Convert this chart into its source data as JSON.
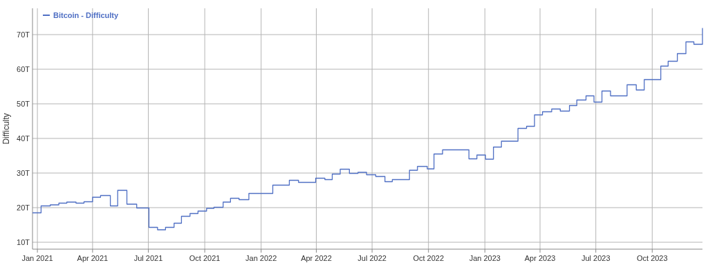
{
  "chart_data": {
    "type": "step",
    "ylabel": "Difficulty",
    "legend": "top left",
    "grid": true,
    "marker": "none",
    "line_style": "solid",
    "xlim": [
      "2020-12-24",
      "2023-12-22"
    ],
    "ylim": [
      8,
      77.6
    ],
    "xticks": [
      {
        "value": "2021-01-01",
        "label": "Jan 2021"
      },
      {
        "value": "2021-04-01",
        "label": "Apr 2021"
      },
      {
        "value": "2021-07-01",
        "label": "Jul 2021"
      },
      {
        "value": "2021-10-01",
        "label": "Oct 2021"
      },
      {
        "value": "2022-01-01",
        "label": "Jan 2022"
      },
      {
        "value": "2022-04-01",
        "label": "Apr 2022"
      },
      {
        "value": "2022-07-01",
        "label": "Jul 2022"
      },
      {
        "value": "2022-10-01",
        "label": "Oct 2022"
      },
      {
        "value": "2023-01-01",
        "label": "Jan 2023"
      },
      {
        "value": "2023-04-01",
        "label": "Apr 2023"
      },
      {
        "value": "2023-07-01",
        "label": "Jul 2023"
      },
      {
        "value": "2023-10-01",
        "label": "Oct 2023"
      }
    ],
    "yticks": [
      {
        "value": 10,
        "label": "10T"
      },
      {
        "value": 20,
        "label": "20T"
      },
      {
        "value": 30,
        "label": "30T"
      },
      {
        "value": 40,
        "label": "40T"
      },
      {
        "value": 50,
        "label": "50T"
      },
      {
        "value": 60,
        "label": "60T"
      },
      {
        "value": 70,
        "label": "70T"
      }
    ],
    "x": [
      "2020-12-24",
      "2021-01-07",
      "2021-01-22",
      "2021-02-05",
      "2021-02-18",
      "2021-03-05",
      "2021-03-18",
      "2021-04-01",
      "2021-04-14",
      "2021-04-30",
      "2021-05-12",
      "2021-05-27",
      "2021-06-12",
      "2021-07-02",
      "2021-07-16",
      "2021-07-29",
      "2021-08-12",
      "2021-08-24",
      "2021-09-07",
      "2021-09-20",
      "2021-10-04",
      "2021-10-16",
      "2021-10-31",
      "2021-11-12",
      "2021-11-26",
      "2021-12-12",
      "2022-01-20",
      "2022-02-16",
      "2022-03-03",
      "2022-03-31",
      "2022-04-15",
      "2022-04-27",
      "2022-05-10",
      "2022-05-25",
      "2022-06-08",
      "2022-06-22",
      "2022-07-07",
      "2022-07-22",
      "2022-08-03",
      "2022-08-31",
      "2022-09-13",
      "2022-09-29",
      "2022-10-10",
      "2022-10-24",
      "2022-12-06",
      "2022-12-19",
      "2023-01-02",
      "2023-01-15",
      "2023-01-28",
      "2023-02-24",
      "2023-03-10",
      "2023-03-23",
      "2023-04-05",
      "2023-04-20",
      "2023-05-04",
      "2023-05-19",
      "2023-05-31",
      "2023-06-15",
      "2023-06-28",
      "2023-07-11",
      "2023-07-25",
      "2023-08-21",
      "2023-09-05",
      "2023-09-18",
      "2023-10-15",
      "2023-10-27",
      "2023-11-11",
      "2023-11-25",
      "2023-12-08",
      "2023-12-22"
    ],
    "series": [
      {
        "name": "Bitcoin - Difficulty",
        "color": "#4f6fc4",
        "values": [
          18.5,
          20.5,
          20.8,
          21.3,
          21.6,
          21.3,
          21.7,
          23.0,
          23.5,
          20.5,
          25.0,
          21.0,
          19.9,
          14.3,
          13.6,
          14.3,
          15.5,
          17.5,
          18.3,
          19.0,
          19.8,
          20.1,
          21.6,
          22.7,
          22.3,
          24.1,
          26.5,
          27.9,
          27.3,
          28.5,
          28.1,
          29.7,
          31.1,
          29.9,
          30.2,
          29.5,
          29.0,
          27.5,
          28.1,
          30.8,
          31.9,
          31.2,
          35.5,
          36.7,
          34.1,
          35.2,
          34.0,
          37.5,
          39.2,
          42.9,
          43.5,
          46.8,
          47.7,
          48.5,
          47.9,
          49.5,
          51.1,
          52.3,
          50.5,
          53.7,
          52.3,
          55.5,
          54.0,
          57.0,
          60.9,
          62.3,
          64.5,
          67.9,
          67.2,
          71.9
        ]
      }
    ]
  }
}
